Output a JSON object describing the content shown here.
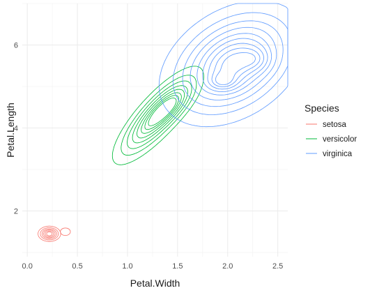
{
  "chart_data": {
    "type": "contour",
    "xlabel": "Petal.Width",
    "ylabel": "Petal.Length",
    "xlim": [
      -0.05,
      2.6
    ],
    "ylim": [
      0.9,
      7.0
    ],
    "x_ticks": [
      0.0,
      0.5,
      1.0,
      1.5,
      2.0,
      2.5
    ],
    "x_tick_labels": [
      "0.0",
      "0.5",
      "1.0",
      "1.5",
      "2.0",
      "2.5"
    ],
    "y_ticks": [
      2,
      4,
      6
    ],
    "y_tick_labels": [
      "2",
      "4",
      "6"
    ],
    "grid": true,
    "legend": {
      "title": "Species",
      "position": "right"
    },
    "series": [
      {
        "name": "setosa",
        "color": "#F8766D",
        "peaks": [
          {
            "x": 0.22,
            "y": 1.45,
            "sx": 0.055,
            "sy": 0.09,
            "w": 1.0
          }
        ],
        "levels": [
          0.12,
          0.26,
          0.42,
          0.58,
          0.74,
          0.88
        ],
        "extra_contours": [
          {
            "x": 0.38,
            "y": 1.5,
            "r": 0.05,
            "ry": 0.09
          }
        ]
      },
      {
        "name": "versicolor",
        "color": "#00BA38",
        "peaks": [
          {
            "x": 1.3,
            "y": 4.3,
            "sx": 0.19,
            "sy": 0.5,
            "rho": 0.82,
            "w": 1.0
          },
          {
            "x": 1.45,
            "y": 4.55,
            "sx": 0.12,
            "sy": 0.28,
            "rho": 0.7,
            "w": 0.35
          }
        ],
        "levels": [
          0.06,
          0.16,
          0.28,
          0.42,
          0.56,
          0.7,
          0.82,
          0.93
        ]
      },
      {
        "name": "virginica",
        "color": "#619CFF",
        "peaks": [
          {
            "x": 2.05,
            "y": 5.55,
            "sx": 0.3,
            "sy": 0.62,
            "rho": 0.35,
            "w": 1.0
          },
          {
            "x": 1.95,
            "y": 5.1,
            "sx": 0.1,
            "sy": 0.14,
            "w": 0.25
          },
          {
            "x": 2.3,
            "y": 5.65,
            "sx": 0.1,
            "sy": 0.2,
            "w": 0.2
          }
        ],
        "levels": [
          0.05,
          0.14,
          0.25,
          0.37,
          0.5,
          0.62,
          0.74,
          0.85,
          0.94
        ]
      }
    ]
  }
}
